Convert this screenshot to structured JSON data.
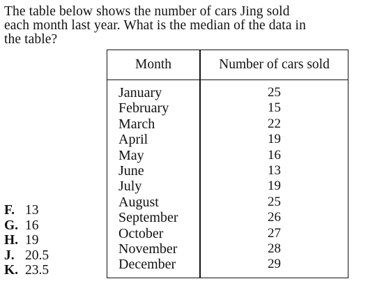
{
  "question": {
    "line1": "The table below shows the number of cars Jing sold",
    "line2": "each month last year. What is the median of the data in",
    "line3": "the table?"
  },
  "table": {
    "headers": [
      "Month",
      "Number of cars sold"
    ],
    "rows": [
      {
        "month": "January",
        "cars": "25"
      },
      {
        "month": "February",
        "cars": "15"
      },
      {
        "month": "March",
        "cars": "22"
      },
      {
        "month": "April",
        "cars": "19"
      },
      {
        "month": "May",
        "cars": "16"
      },
      {
        "month": "June",
        "cars": "13"
      },
      {
        "month": "July",
        "cars": "19"
      },
      {
        "month": "August",
        "cars": "25"
      },
      {
        "month": "September",
        "cars": "26"
      },
      {
        "month": "October",
        "cars": "27"
      },
      {
        "month": "November",
        "cars": "28"
      },
      {
        "month": "December",
        "cars": "29"
      }
    ]
  },
  "choices": [
    {
      "letter": "F.",
      "value": "13"
    },
    {
      "letter": "G.",
      "value": "16"
    },
    {
      "letter": "H.",
      "value": "19"
    },
    {
      "letter": "J.",
      "value": "20.5"
    },
    {
      "letter": "K.",
      "value": "23.5"
    }
  ]
}
